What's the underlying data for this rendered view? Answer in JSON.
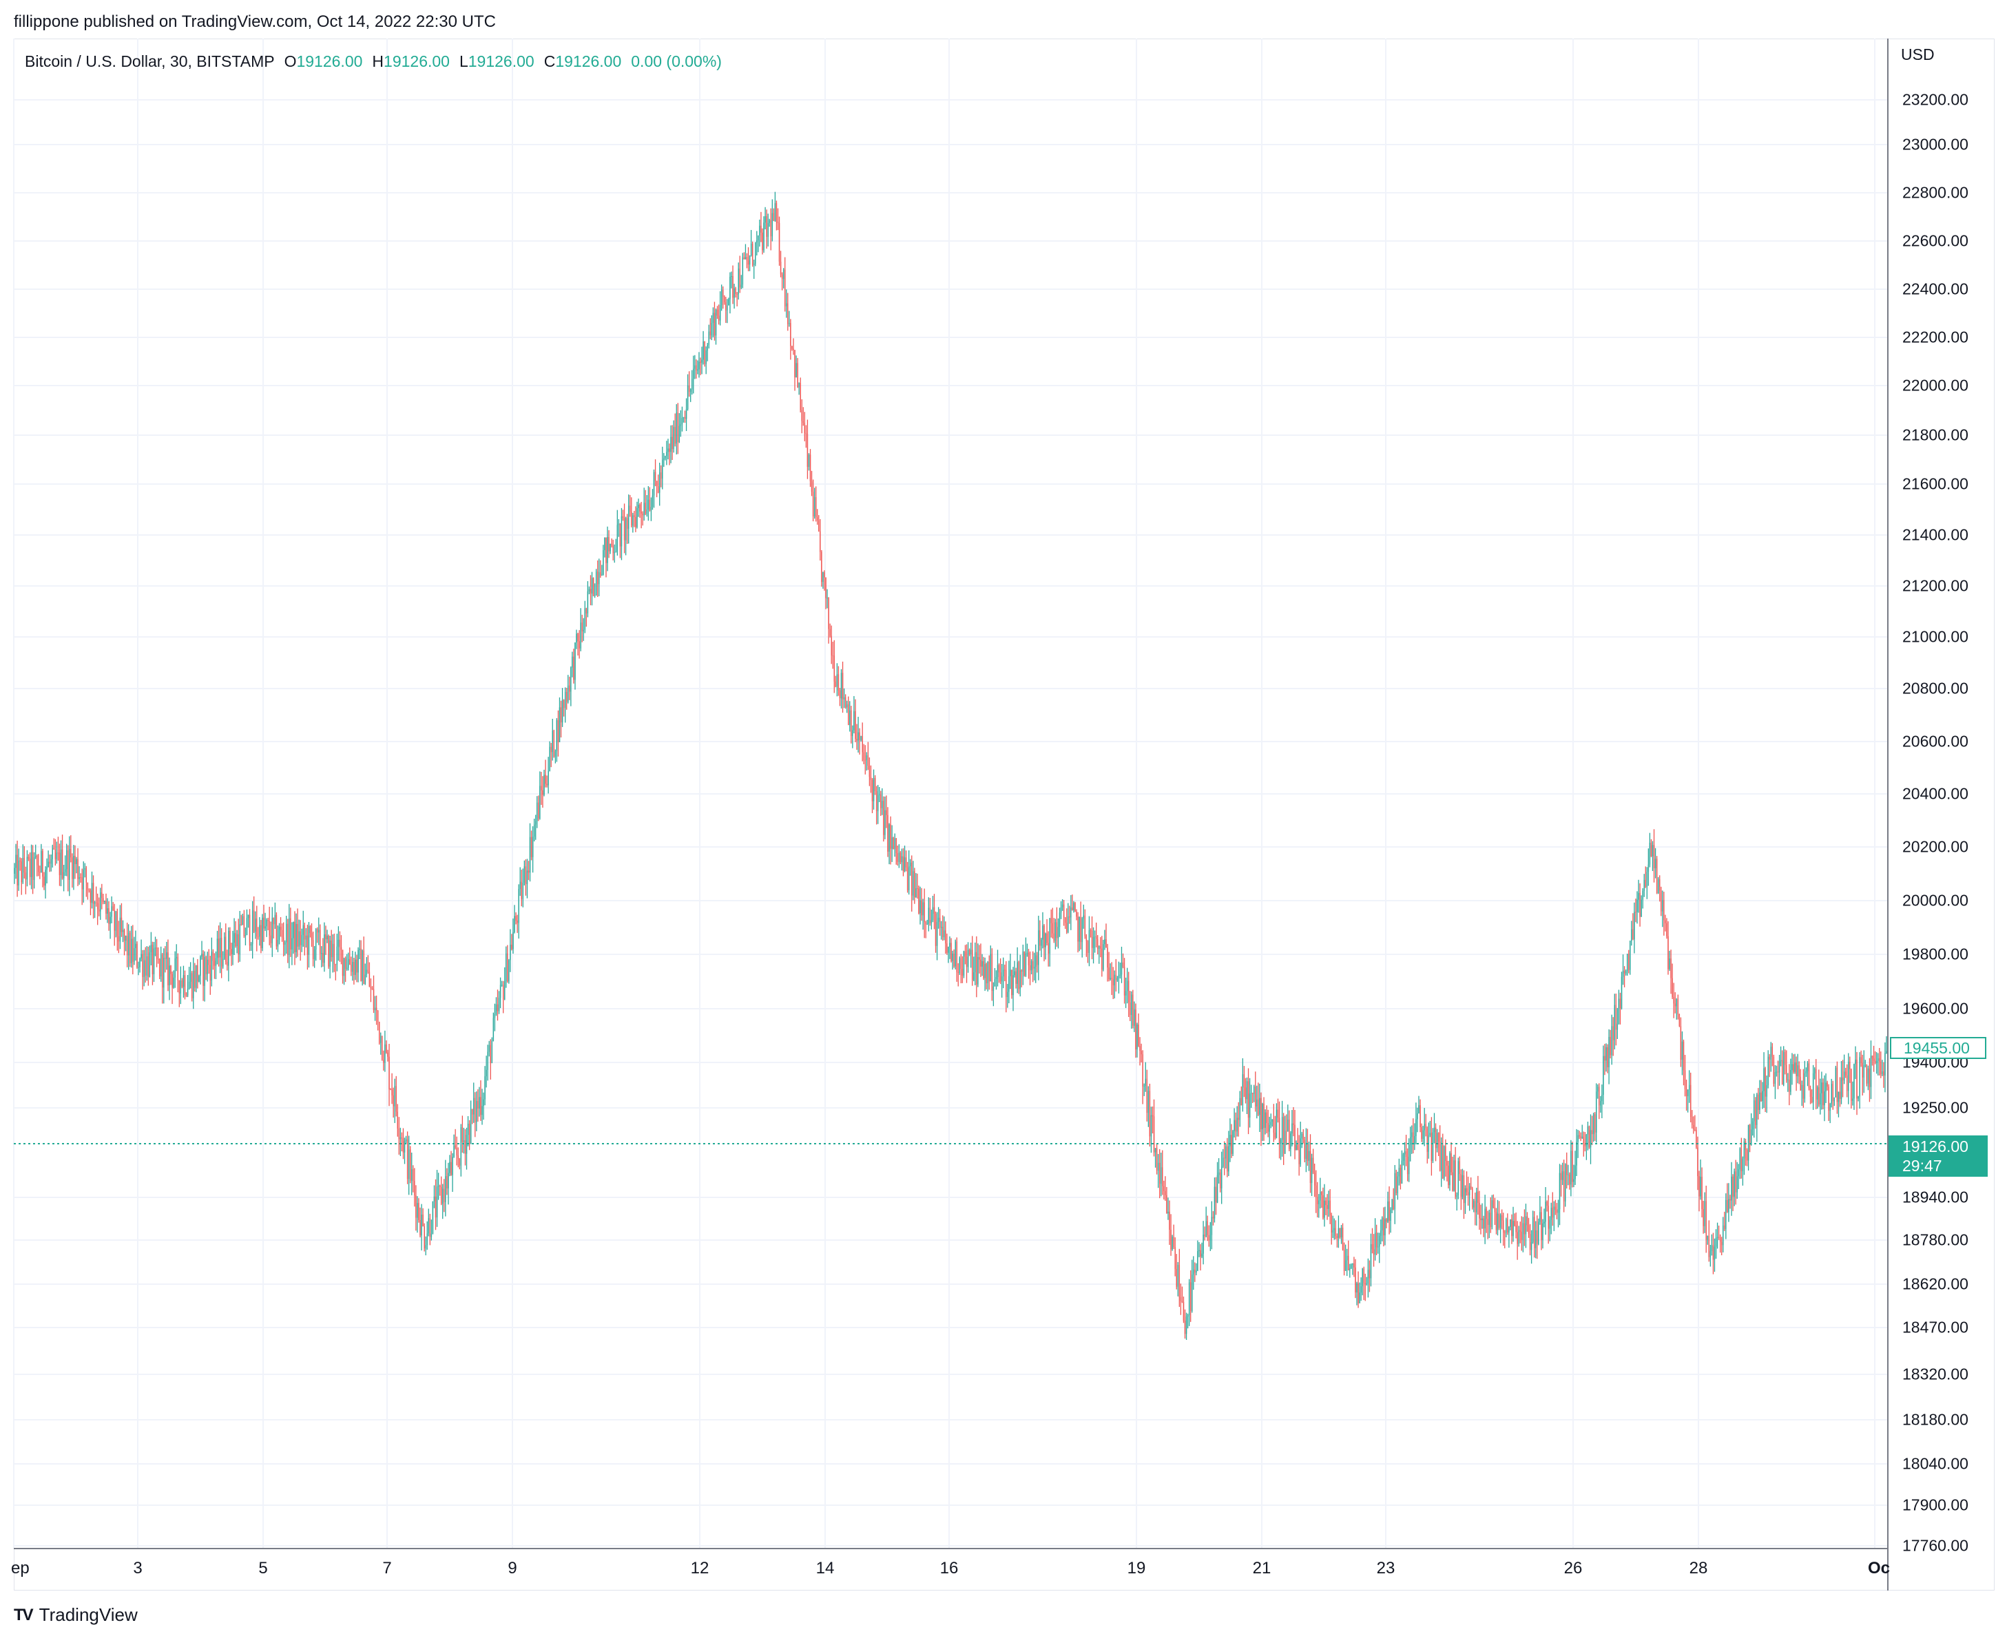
{
  "header": {
    "publisher": "fillippone published on TradingView.com, Oct 14, 2022 22:30 UTC"
  },
  "legend": {
    "symbol": "Bitcoin / U.S. Dollar, 30, BITSTAMP",
    "open_label": "O",
    "open": "19126.00",
    "high_label": "H",
    "high": "19126.00",
    "low_label": "L",
    "low": "19126.00",
    "close_label": "C",
    "close": "19126.00",
    "change": "0.00 (0.00%)"
  },
  "axis": {
    "currency": "USD",
    "price_ticks": [
      "23200.00",
      "23000.00",
      "22800.00",
      "22600.00",
      "22400.00",
      "22200.00",
      "22000.00",
      "21800.00",
      "21600.00",
      "21400.00",
      "21200.00",
      "21000.00",
      "20800.00",
      "20600.00",
      "20400.00",
      "20200.00",
      "20000.00",
      "19800.00",
      "19600.00",
      "19400.00",
      "19250.00",
      "18940.00",
      "18780.00",
      "18620.00",
      "18470.00",
      "18320.00",
      "18180.00",
      "18040.00",
      "17900.00",
      "17760.00"
    ],
    "time_ticks": [
      "ep",
      "3",
      "5",
      "7",
      "9",
      "12",
      "14",
      "16",
      "19",
      "21",
      "23",
      "26",
      "28",
      "Oc"
    ]
  },
  "price_tags": {
    "current_price": "19126.00",
    "countdown": "29:47",
    "previous_close": "19455.00"
  },
  "footer": {
    "brand": "TradingView",
    "logo_glyph": "TV"
  },
  "colors": {
    "up": "#26a69a",
    "down": "#ef5350",
    "accent": "#22ab94",
    "grid": "#f0f3fa"
  },
  "chart_data": {
    "type": "candlestick",
    "title": "Bitcoin / U.S. Dollar, 30, BITSTAMP",
    "ylabel": "USD",
    "ylim": [
      17700,
      23350
    ],
    "grid": true,
    "series": [
      {
        "x": [
          "Sep 1",
          "Sep 2",
          "Sep 3",
          "Sep 4",
          "Sep 5",
          "Sep 6",
          "Sep 6 12:00",
          "Sep 7",
          "Sep 8",
          "Sep 9",
          "Sep 10",
          "Sep 11",
          "Sep 12",
          "Sep 13",
          "Sep 13 12:00",
          "Sep 14",
          "Sep 15",
          "Sep 16",
          "Sep 17",
          "Sep 18",
          "Sep 19",
          "Sep 20",
          "Sep 21",
          "Sep 22",
          "Sep 23",
          "Sep 24",
          "Sep 25",
          "Sep 26",
          "Sep 27",
          "Sep 28",
          "Sep 29",
          "Sep 30",
          "Oct 1"
        ],
        "close": [
          20100,
          20150,
          19800,
          19700,
          19900,
          19850,
          19750,
          18800,
          19300,
          20400,
          21300,
          21600,
          22300,
          22700,
          20900,
          20200,
          19800,
          19700,
          19950,
          19700,
          18500,
          19300,
          19100,
          18600,
          19200,
          18900,
          18800,
          19200,
          20200,
          18700,
          19400,
          19300,
          19400
        ]
      }
    ]
  }
}
